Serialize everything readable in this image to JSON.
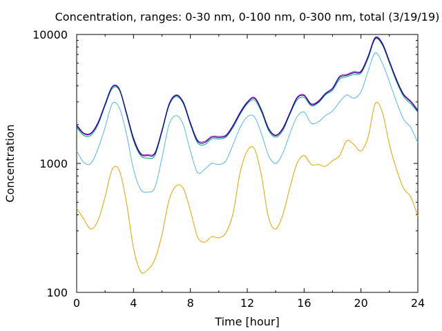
{
  "chart_data": {
    "type": "line",
    "title": "Concentration, ranges: 0-30 nm, 0-100 nm, 0-300 nm, total (3/19/19)",
    "xlabel": "Time [hour]",
    "ylabel": "Concentration",
    "xlim": [
      0,
      24
    ],
    "ylim": [
      100,
      10000
    ],
    "yscale": "log",
    "grid": false,
    "legend": "none",
    "x_ticks": [
      0,
      4,
      8,
      12,
      16,
      20,
      24
    ],
    "x_tick_labels": [
      "0",
      "4",
      "8",
      "12",
      "16",
      "20",
      "24"
    ],
    "y_ticks": [
      100,
      1000,
      10000
    ],
    "y_tick_labels": [
      "100",
      "1000",
      "10000"
    ],
    "x": [
      0,
      0.5,
      1,
      1.5,
      2,
      2.5,
      3,
      3.5,
      4,
      4.5,
      5,
      5.5,
      6,
      6.5,
      7,
      7.5,
      8,
      8.5,
      9,
      9.5,
      10,
      10.5,
      11,
      11.5,
      12,
      12.5,
      13,
      13.5,
      14,
      14.5,
      15,
      15.5,
      16,
      16.5,
      17,
      17.5,
      18,
      18.5,
      19,
      19.5,
      20,
      20.5,
      21,
      21.5,
      22,
      22.5,
      23,
      23.5,
      24
    ],
    "series": [
      {
        "color": "#e6a000",
        "values": [
          450,
          370,
          310,
          360,
          550,
          900,
          880,
          500,
          220,
          145,
          150,
          180,
          280,
          520,
          670,
          640,
          430,
          270,
          245,
          270,
          265,
          290,
          410,
          850,
          1250,
          1300,
          800,
          380,
          310,
          400,
          650,
          1000,
          1150,
          980,
          980,
          950,
          1050,
          1150,
          1500,
          1400,
          1250,
          1600,
          2900,
          2500,
          1400,
          900,
          640,
          550,
          390
        ]
      },
      {
        "color": "#56b4e9",
        "values": [
          1250,
          1020,
          1000,
          1300,
          1900,
          2900,
          2700,
          1700,
          900,
          630,
          600,
          650,
          1100,
          2000,
          2350,
          2000,
          1250,
          850,
          900,
          1000,
          980,
          1050,
          1400,
          1900,
          2300,
          2300,
          1700,
          1150,
          1000,
          1200,
          1700,
          2300,
          2500,
          2050,
          2100,
          2350,
          2550,
          3000,
          3400,
          3200,
          3600,
          5200,
          7200,
          6000,
          4300,
          3000,
          2200,
          1900,
          1450
        ]
      },
      {
        "color": "#009e73",
        "values": [
          1900,
          1650,
          1650,
          2000,
          2800,
          3800,
          3700,
          2400,
          1500,
          1150,
          1100,
          1150,
          1750,
          2800,
          3300,
          2900,
          2000,
          1450,
          1400,
          1550,
          1550,
          1600,
          1900,
          2400,
          2900,
          3100,
          2500,
          1800,
          1600,
          1800,
          2400,
          3100,
          3250,
          2800,
          2950,
          3400,
          3700,
          4500,
          4700,
          4900,
          5000,
          6500,
          9200,
          8300,
          6000,
          4300,
          3300,
          2900,
          2500
        ]
      },
      {
        "color": "#9400d3",
        "values": [
          2000,
          1720,
          1720,
          2080,
          2900,
          3950,
          3800,
          2500,
          1580,
          1200,
          1170,
          1210,
          1820,
          2900,
          3400,
          3000,
          2080,
          1520,
          1480,
          1620,
          1620,
          1660,
          1980,
          2500,
          3000,
          3250,
          2620,
          1880,
          1660,
          1880,
          2480,
          3250,
          3400,
          2900,
          3050,
          3500,
          3850,
          4750,
          4900,
          5150,
          5200,
          6800,
          9500,
          8600,
          6250,
          4500,
          3450,
          3050,
          2600
        ]
      },
      {
        "color": "#000080",
        "values": [
          1950,
          1700,
          1700,
          2050,
          2860,
          3900,
          3760,
          2460,
          1550,
          1180,
          1150,
          1190,
          1790,
          2860,
          3360,
          2960,
          2040,
          1490,
          1450,
          1590,
          1590,
          1630,
          1950,
          2460,
          2960,
          3200,
          2580,
          1850,
          1640,
          1850,
          2440,
          3200,
          3350,
          2860,
          3000,
          3460,
          3800,
          4650,
          4820,
          5050,
          5120,
          6700,
          9350,
          8450,
          6150,
          4420,
          3400,
          3000,
          2550
        ]
      }
    ]
  }
}
